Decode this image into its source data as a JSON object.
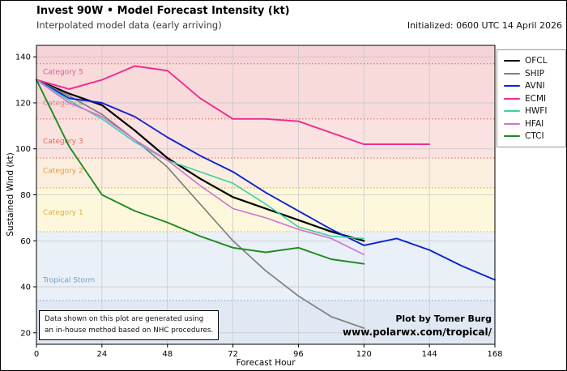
{
  "header": {
    "title": "Invest 90W • Model Forecast Intensity (kt)",
    "subtitle": "Interpolated model data (early arriving)",
    "initialized": "Initialized: 0600 UTC 14 April 2026"
  },
  "chart_data": {
    "type": "line",
    "title": "Invest 90W • Model Forecast Intensity (kt)",
    "xlabel": "Forecast Hour",
    "ylabel": "Sustained Wind (kt)",
    "xlim": [
      0,
      168
    ],
    "ylim": [
      15,
      145
    ],
    "xticks": [
      0,
      24,
      48,
      72,
      96,
      120,
      144,
      168
    ],
    "yticks": [
      20,
      40,
      60,
      80,
      100,
      120,
      140
    ],
    "grid": true,
    "legend_position": "outside-right",
    "bands": [
      {
        "label": "Category 5",
        "from": 137,
        "to": 145,
        "fill": "#f6d3d6",
        "label_color": "#d4618d",
        "label_y": 133.5,
        "line_color": "#e86a6a"
      },
      {
        "label": "Category 4",
        "from": 113,
        "to": 137,
        "fill": "#f8dada",
        "label_color": "#e08585",
        "label_y": 120,
        "line_color": "#e86a6a"
      },
      {
        "label": "Category 3",
        "from": 96,
        "to": 113,
        "fill": "#fae2e0",
        "label_color": "#e2695f",
        "label_y": 103.5,
        "line_color": "#e86a6a"
      },
      {
        "label": "Category 2",
        "from": 83,
        "to": 96,
        "fill": "#fceede",
        "label_color": "#e39b43",
        "label_y": 90.5,
        "line_color": "#eaa23f"
      },
      {
        "label": "Category 1",
        "from": 64,
        "to": 83,
        "fill": "#fdf8dc",
        "label_color": "#d9ae35",
        "label_y": 72.5,
        "line_color": "#e0bb3a"
      },
      {
        "label": "Tropical Storm",
        "from": 34,
        "to": 64,
        "fill": "#eaf0f7",
        "label_color": "#6f9ec6",
        "label_y": 43,
        "line_color": "#7fa8cf"
      },
      {
        "label": "",
        "from": 15,
        "to": 34,
        "fill": "#e0e9f3",
        "label_color": "",
        "label_y": null,
        "line_color": ""
      }
    ],
    "series": [
      {
        "name": "OFCL",
        "color": "#000000",
        "width": 2.2,
        "x": [
          0,
          12,
          24,
          36,
          48,
          60,
          72,
          84,
          96,
          108,
          120
        ],
        "values": [
          130,
          124,
          119,
          108,
          96,
          87,
          79,
          74,
          69,
          64,
          60
        ]
      },
      {
        "name": "SHIP",
        "color": "#7f7f7f",
        "width": 1.7,
        "x": [
          0,
          12,
          24,
          36,
          48,
          60,
          72,
          84,
          96,
          108,
          120
        ],
        "values": [
          130,
          123,
          115,
          104,
          92,
          76,
          60,
          47,
          36,
          27,
          22
        ]
      },
      {
        "name": "AVNI",
        "color": "#0b24cf",
        "width": 1.9,
        "x": [
          0,
          12,
          24,
          36,
          48,
          60,
          72,
          84,
          96,
          108,
          120,
          132,
          144,
          156,
          168
        ],
        "values": [
          130,
          122,
          120,
          114,
          105,
          97,
          90,
          81,
          73,
          65,
          58,
          61,
          56,
          49,
          43
        ]
      },
      {
        "name": "ECMI",
        "color": "#f02890",
        "width": 1.9,
        "x": [
          0,
          12,
          24,
          36,
          48,
          60,
          72,
          84,
          96,
          108,
          120,
          132,
          144
        ],
        "values": [
          130,
          126,
          130,
          136,
          134,
          122,
          113,
          113,
          112,
          107,
          102,
          102,
          102
        ]
      },
      {
        "name": "HWFI",
        "color": "#3ed0a6",
        "width": 1.6,
        "x": [
          0,
          12,
          24,
          36,
          48,
          60,
          72,
          84,
          96,
          108,
          120
        ],
        "values": [
          130,
          121,
          113,
          103,
          95,
          90,
          85,
          76,
          66,
          62,
          61
        ]
      },
      {
        "name": "HFAI",
        "color": "#cf6fd8",
        "width": 1.6,
        "x": [
          0,
          12,
          24,
          36,
          48,
          60,
          72,
          84,
          96,
          108,
          120
        ],
        "values": [
          130,
          120,
          114,
          104,
          95,
          84,
          74,
          70,
          65,
          61,
          54
        ]
      },
      {
        "name": "CTCI",
        "color": "#1e8a1e",
        "width": 1.9,
        "x": [
          0,
          12,
          24,
          36,
          48,
          60,
          72,
          84,
          96,
          108,
          120
        ],
        "values": [
          130,
          101,
          80,
          73,
          68,
          62,
          57,
          55,
          57,
          52,
          50
        ]
      }
    ],
    "annotation": {
      "line1": "Data shown on this plot are generated using",
      "line2": "an in-house method based on NHC procedures."
    },
    "credit": {
      "line1": "Plot by Tomer Burg",
      "line2": "www.polarwx.com/tropical/"
    }
  }
}
